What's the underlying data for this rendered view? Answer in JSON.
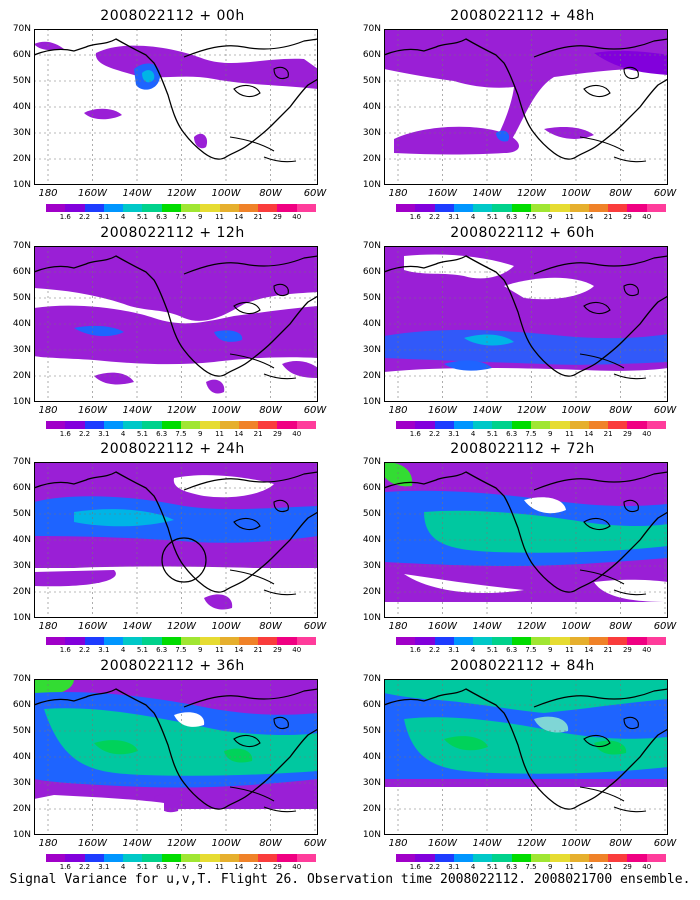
{
  "panels": [
    {
      "title": "2008022112 + 00h",
      "col": 0,
      "row": 0
    },
    {
      "title": "2008022112 + 48h",
      "col": 1,
      "row": 0
    },
    {
      "title": "2008022112 + 12h",
      "col": 0,
      "row": 1
    },
    {
      "title": "2008022112 + 60h",
      "col": 1,
      "row": 1
    },
    {
      "title": "2008022112 + 24h",
      "col": 0,
      "row": 2
    },
    {
      "title": "2008022112 + 72h",
      "col": 1,
      "row": 2
    },
    {
      "title": "2008022112 + 36h",
      "col": 0,
      "row": 3
    },
    {
      "title": "2008022112 + 84h",
      "col": 1,
      "row": 3
    }
  ],
  "lat_labels": [
    "70N",
    "60N",
    "50N",
    "40N",
    "30N",
    "20N",
    "10N"
  ],
  "lon_labels": [
    "180",
    "160W",
    "140W",
    "120W",
    "100W",
    "80W",
    "60W"
  ],
  "colorbar": {
    "labels": [
      "1.6",
      "2.2",
      "3.1",
      "4",
      "5.1",
      "6.3",
      "7.5",
      "9",
      "11",
      "14",
      "21",
      "29",
      "40"
    ],
    "colors": [
      "#a000c8",
      "#8200dc",
      "#1e3cff",
      "#0096ff",
      "#00c8c8",
      "#00d28c",
      "#00dc00",
      "#a0e632",
      "#e6dc32",
      "#e6af2d",
      "#f08228",
      "#fa3c3c",
      "#f00082",
      "#ff3c9b"
    ]
  },
  "caption": "Signal Variance for u,v,T. Flight 26. Observation time 2008022112. 2008021700 ensemble."
}
